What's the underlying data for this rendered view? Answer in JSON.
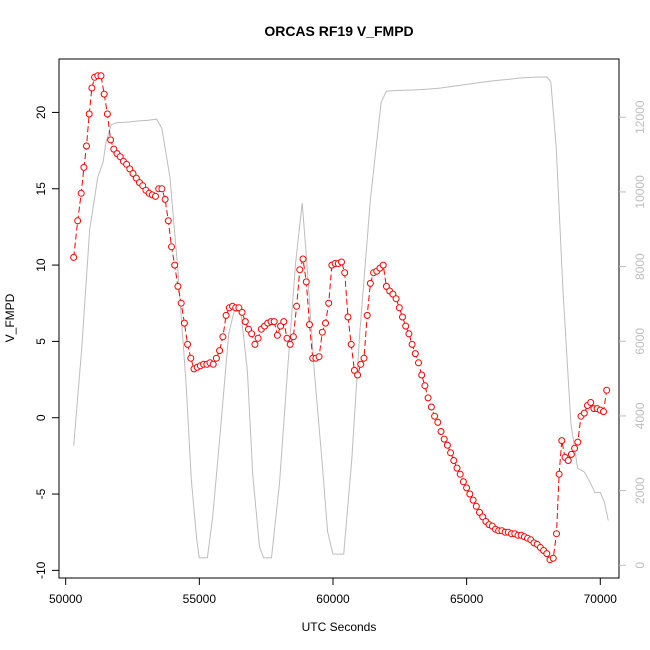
{
  "chart_data": {
    "type": "line",
    "title": "ORCAS RF19 V_FMPD",
    "xlabel": "UTC Seconds",
    "ylabel": "V_FMPD",
    "xlim": [
      49750,
      70700
    ],
    "ylim": [
      -10.5,
      23.5
    ],
    "y2lim": [
      -340,
      13560
    ],
    "x_ticks": [
      50000,
      55000,
      60000,
      65000,
      70000
    ],
    "y_ticks": [
      -10,
      -5,
      0,
      5,
      10,
      15,
      20
    ],
    "y2_ticks": [
      0,
      2000,
      4000,
      6000,
      8000,
      10000,
      12000
    ],
    "series": [
      {
        "role": "primary",
        "color": "#ff0000",
        "marker": "open-circle",
        "line": "dashed",
        "points": [
          [
            50300,
            10.5
          ],
          [
            50450,
            12.9
          ],
          [
            50580,
            14.7
          ],
          [
            50680,
            16.4
          ],
          [
            50780,
            17.8
          ],
          [
            50880,
            19.9
          ],
          [
            50980,
            21.6
          ],
          [
            51080,
            22.3
          ],
          [
            51200,
            22.4
          ],
          [
            51320,
            22.4
          ],
          [
            51440,
            21.2
          ],
          [
            51560,
            19.9
          ],
          [
            51680,
            18.2
          ],
          [
            51800,
            17.6
          ],
          [
            51920,
            17.3
          ],
          [
            52040,
            17.1
          ],
          [
            52160,
            16.8
          ],
          [
            52280,
            16.6
          ],
          [
            52400,
            16.3
          ],
          [
            52520,
            16.0
          ],
          [
            52640,
            15.7
          ],
          [
            52760,
            15.4
          ],
          [
            52880,
            15.2
          ],
          [
            53000,
            14.9
          ],
          [
            53120,
            14.7
          ],
          [
            53240,
            14.6
          ],
          [
            53360,
            14.5
          ],
          [
            53480,
            15.0
          ],
          [
            53600,
            15.0
          ],
          [
            53720,
            14.3
          ],
          [
            53840,
            12.9
          ],
          [
            53960,
            11.2
          ],
          [
            54080,
            10.0
          ],
          [
            54200,
            8.6
          ],
          [
            54320,
            7.5
          ],
          [
            54440,
            6.2
          ],
          [
            54560,
            4.8
          ],
          [
            54680,
            3.9
          ],
          [
            54800,
            3.2
          ],
          [
            54920,
            3.3
          ],
          [
            55040,
            3.4
          ],
          [
            55160,
            3.5
          ],
          [
            55280,
            3.5
          ],
          [
            55400,
            3.6
          ],
          [
            55520,
            3.5
          ],
          [
            55640,
            3.9
          ],
          [
            55760,
            4.4
          ],
          [
            55880,
            5.3
          ],
          [
            56000,
            6.7
          ],
          [
            56120,
            7.2
          ],
          [
            56240,
            7.3
          ],
          [
            56360,
            7.2
          ],
          [
            56480,
            7.2
          ],
          [
            56600,
            6.9
          ],
          [
            56720,
            6.3
          ],
          [
            56840,
            5.8
          ],
          [
            56960,
            5.5
          ],
          [
            57080,
            4.8
          ],
          [
            57200,
            5.2
          ],
          [
            57320,
            5.8
          ],
          [
            57440,
            6.0
          ],
          [
            57560,
            6.2
          ],
          [
            57680,
            6.3
          ],
          [
            57800,
            6.3
          ],
          [
            57920,
            5.4
          ],
          [
            58040,
            6.0
          ],
          [
            58160,
            6.3
          ],
          [
            58280,
            5.2
          ],
          [
            58400,
            4.8
          ],
          [
            58520,
            5.3
          ],
          [
            58640,
            7.3
          ],
          [
            58760,
            9.7
          ],
          [
            58880,
            10.4
          ],
          [
            59000,
            8.9
          ],
          [
            59120,
            6.1
          ],
          [
            59240,
            3.9
          ],
          [
            59360,
            3.9
          ],
          [
            59480,
            4.0
          ],
          [
            59600,
            5.6
          ],
          [
            59720,
            6.2
          ],
          [
            59840,
            7.5
          ],
          [
            59960,
            10.0
          ],
          [
            60080,
            10.1
          ],
          [
            60200,
            10.1
          ],
          [
            60320,
            10.2
          ],
          [
            60440,
            9.5
          ],
          [
            60560,
            6.6
          ],
          [
            60680,
            4.8
          ],
          [
            60800,
            3.1
          ],
          [
            60920,
            2.8
          ],
          [
            61040,
            3.5
          ],
          [
            61160,
            3.9
          ],
          [
            61280,
            6.7
          ],
          [
            61400,
            8.8
          ],
          [
            61520,
            9.5
          ],
          [
            61640,
            9.6
          ],
          [
            61760,
            9.8
          ],
          [
            61880,
            10.0
          ],
          [
            62000,
            8.6
          ],
          [
            62120,
            8.3
          ],
          [
            62240,
            8.1
          ],
          [
            62360,
            7.8
          ],
          [
            62480,
            7.2
          ],
          [
            62600,
            6.6
          ],
          [
            62720,
            6.0
          ],
          [
            62840,
            5.5
          ],
          [
            62960,
            4.8
          ],
          [
            63080,
            4.2
          ],
          [
            63200,
            3.6
          ],
          [
            63320,
            2.8
          ],
          [
            63440,
            2.1
          ],
          [
            63560,
            1.3
          ],
          [
            63680,
            0.7
          ],
          [
            63800,
            0.1
          ],
          [
            63920,
            -0.3
          ],
          [
            64040,
            -0.9
          ],
          [
            64160,
            -1.4
          ],
          [
            64280,
            -1.8
          ],
          [
            64400,
            -2.3
          ],
          [
            64520,
            -2.8
          ],
          [
            64640,
            -3.3
          ],
          [
            64760,
            -3.7
          ],
          [
            64880,
            -4.2
          ],
          [
            65000,
            -4.6
          ],
          [
            65120,
            -5.0
          ],
          [
            65240,
            -5.4
          ],
          [
            65360,
            -5.8
          ],
          [
            65480,
            -6.2
          ],
          [
            65600,
            -6.5
          ],
          [
            65720,
            -6.8
          ],
          [
            65840,
            -7.0
          ],
          [
            65960,
            -7.1
          ],
          [
            66080,
            -7.3
          ],
          [
            66200,
            -7.4
          ],
          [
            66320,
            -7.4
          ],
          [
            66440,
            -7.5
          ],
          [
            66560,
            -7.5
          ],
          [
            66680,
            -7.6
          ],
          [
            66800,
            -7.6
          ],
          [
            66920,
            -7.7
          ],
          [
            67040,
            -7.7
          ],
          [
            67160,
            -7.8
          ],
          [
            67280,
            -7.9
          ],
          [
            67400,
            -8.0
          ],
          [
            67520,
            -8.2
          ],
          [
            67640,
            -8.3
          ],
          [
            67760,
            -8.5
          ],
          [
            67880,
            -8.7
          ],
          [
            68000,
            -8.9
          ],
          [
            68120,
            -9.3
          ],
          [
            68240,
            -9.2
          ],
          [
            68360,
            -7.6
          ],
          [
            68460,
            -3.7
          ],
          [
            68560,
            -1.5
          ],
          [
            68680,
            -2.6
          ],
          [
            68800,
            -2.8
          ],
          [
            68920,
            -2.4
          ],
          [
            69040,
            -2.0
          ],
          [
            69160,
            -1.6
          ],
          [
            69280,
            0.1
          ],
          [
            69400,
            0.3
          ],
          [
            69520,
            0.8
          ],
          [
            69640,
            1.0
          ],
          [
            69760,
            0.6
          ],
          [
            69880,
            0.6
          ],
          [
            70000,
            0.5
          ],
          [
            70120,
            0.4
          ],
          [
            70240,
            1.8
          ]
        ]
      },
      {
        "role": "secondary",
        "color": "#bdbdbd",
        "marker": "none",
        "line": "solid",
        "axis": "right",
        "points": [
          [
            50300,
            3200
          ],
          [
            50600,
            5800
          ],
          [
            50900,
            9000
          ],
          [
            51200,
            10400
          ],
          [
            51400,
            10800
          ],
          [
            51500,
            11300
          ],
          [
            51700,
            11800
          ],
          [
            51900,
            11850
          ],
          [
            52300,
            11870
          ],
          [
            52700,
            11900
          ],
          [
            53100,
            11920
          ],
          [
            53400,
            11950
          ],
          [
            53600,
            11700
          ],
          [
            53900,
            10400
          ],
          [
            54200,
            7900
          ],
          [
            54500,
            4900
          ],
          [
            54700,
            2300
          ],
          [
            54900,
            700
          ],
          [
            55000,
            200
          ],
          [
            55300,
            200
          ],
          [
            55500,
            1300
          ],
          [
            55800,
            3700
          ],
          [
            56100,
            6200
          ],
          [
            56300,
            6800
          ],
          [
            56550,
            6800
          ],
          [
            56800,
            5200
          ],
          [
            57000,
            2400
          ],
          [
            57250,
            500
          ],
          [
            57400,
            200
          ],
          [
            57700,
            200
          ],
          [
            58000,
            2200
          ],
          [
            58300,
            5200
          ],
          [
            58600,
            8100
          ],
          [
            58850,
            9700
          ],
          [
            59000,
            8300
          ],
          [
            59300,
            5200
          ],
          [
            59600,
            2700
          ],
          [
            59800,
            900
          ],
          [
            60000,
            300
          ],
          [
            60400,
            300
          ],
          [
            60700,
            2800
          ],
          [
            61000,
            6200
          ],
          [
            61400,
            9800
          ],
          [
            61800,
            12400
          ],
          [
            62000,
            12700
          ],
          [
            62500,
            12720
          ],
          [
            63000,
            12730
          ],
          [
            63500,
            12750
          ],
          [
            64000,
            12780
          ],
          [
            64500,
            12830
          ],
          [
            65000,
            12880
          ],
          [
            65500,
            12930
          ],
          [
            66000,
            12980
          ],
          [
            66500,
            13010
          ],
          [
            67000,
            13050
          ],
          [
            67500,
            13070
          ],
          [
            68000,
            13080
          ],
          [
            68150,
            12950
          ],
          [
            68350,
            11200
          ],
          [
            68600,
            7400
          ],
          [
            68900,
            3800
          ],
          [
            69150,
            2600
          ],
          [
            69400,
            2500
          ],
          [
            69600,
            2250
          ],
          [
            69800,
            1950
          ],
          [
            70000,
            1950
          ],
          [
            70150,
            1700
          ],
          [
            70300,
            1200
          ]
        ]
      }
    ]
  }
}
